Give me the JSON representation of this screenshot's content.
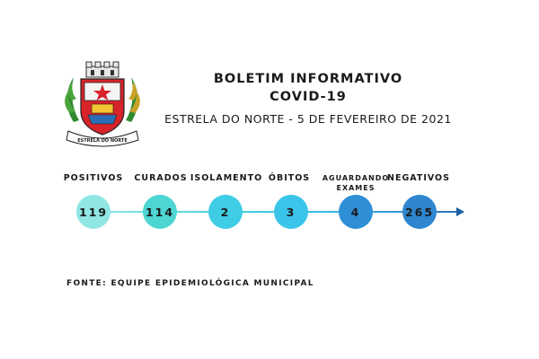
{
  "header": {
    "title_line1": "BOLETIM INFORMATIVO",
    "title_line2": "COVID-19",
    "subtitle": "ESTRELA DO NORTE - 5 DE FEVEREIRO DE 2021"
  },
  "crest": {
    "ribbon_text": "ESTRELA DO NORTE"
  },
  "stats": [
    {
      "label": "POSITIVOS",
      "value": "119",
      "color": "#8fe6e3"
    },
    {
      "label": "CURADOS",
      "value": "114",
      "color": "#4dd6d3"
    },
    {
      "label": "ISOLAMENTO",
      "value": "2",
      "color": "#3fcde6"
    },
    {
      "label": "ÓBITOS",
      "value": "3",
      "color": "#3bc4ea"
    },
    {
      "label": "AGUARDANDO EXAMES",
      "label_line1": "AGUARDANDO",
      "label_line2": "EXAMES",
      "value": "4",
      "color": "#2e8fd6"
    },
    {
      "label": "NEGATIVOS",
      "value": "265",
      "color": "#2f86cf"
    }
  ],
  "footer": {
    "source": "FONTE: EQUIPE EPIDEMIOLÓGICA MUNICIPAL"
  }
}
